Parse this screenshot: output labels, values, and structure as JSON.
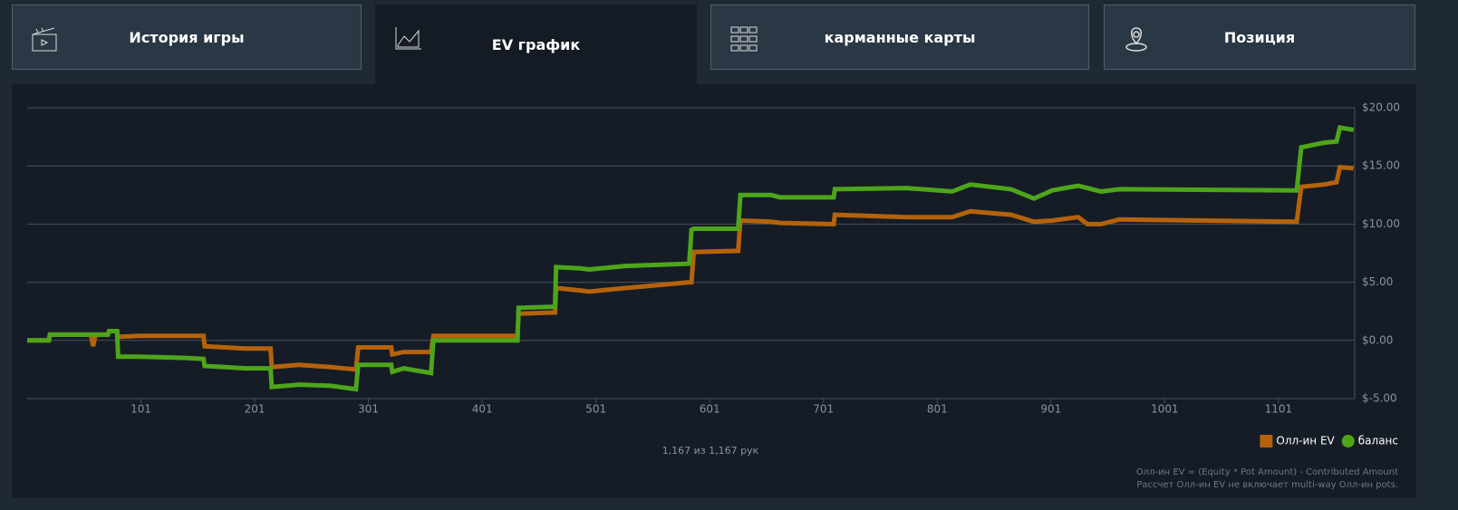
{
  "tabs": [
    {
      "label": "История игры"
    },
    {
      "label": "EV график"
    },
    {
      "label": "карманные карты"
    },
    {
      "label": "Позиция"
    }
  ],
  "active_tab": 1,
  "chart_data": {
    "type": "line",
    "x": [
      1,
      20,
      21,
      57,
      59,
      61,
      72,
      73,
      80,
      81,
      100,
      140,
      156,
      157,
      193,
      215,
      216,
      240,
      268,
      290,
      292,
      321,
      322,
      332,
      356,
      358,
      432,
      433,
      465,
      466,
      487,
      495,
      527,
      583,
      585,
      587,
      626,
      628,
      655,
      663,
      710,
      711,
      774,
      814,
      830,
      866,
      886,
      902,
      925,
      933,
      945,
      961,
      1117,
      1121,
      1141,
      1152,
      1155,
      1167
    ],
    "series": [
      {
        "name": "Олл-ин EV",
        "color": "#b5620c",
        "values": [
          0.0,
          0.0,
          0.5,
          0.5,
          -0.5,
          0.5,
          0.5,
          0.8,
          0.8,
          0.3,
          0.4,
          0.4,
          0.4,
          -0.5,
          -0.7,
          -0.7,
          -2.3,
          -2.1,
          -2.3,
          -2.5,
          -0.6,
          -0.6,
          -1.2,
          -1.0,
          -1.0,
          0.4,
          0.4,
          2.3,
          2.4,
          4.5,
          4.3,
          4.2,
          4.5,
          5.0,
          5.0,
          7.6,
          7.7,
          10.3,
          10.2,
          10.1,
          10.0,
          10.8,
          10.6,
          10.6,
          11.1,
          10.8,
          10.2,
          10.3,
          10.6,
          10.0,
          10.0,
          10.4,
          10.2,
          13.2,
          13.4,
          13.6,
          14.9,
          14.8
        ]
      },
      {
        "name": "баланс",
        "color": "#4ea51b",
        "values": [
          0.0,
          0.0,
          0.5,
          0.5,
          0.5,
          0.5,
          0.5,
          0.8,
          0.8,
          -1.4,
          -1.4,
          -1.5,
          -1.6,
          -2.2,
          -2.4,
          -2.4,
          -4.0,
          -3.8,
          -3.9,
          -4.2,
          -2.1,
          -2.1,
          -2.7,
          -2.4,
          -2.8,
          0.0,
          0.0,
          2.8,
          2.9,
          6.3,
          6.2,
          6.1,
          6.4,
          6.6,
          9.5,
          9.6,
          9.6,
          12.5,
          12.5,
          12.3,
          12.3,
          13.0,
          13.1,
          12.8,
          13.4,
          13.0,
          12.2,
          12.9,
          13.3,
          13.1,
          12.8,
          13.0,
          12.9,
          16.6,
          17.0,
          17.1,
          18.3,
          18.1
        ]
      }
    ],
    "xlim": [
      1,
      1168
    ],
    "xticks": [
      101,
      201,
      301,
      401,
      501,
      601,
      701,
      801,
      901,
      1001,
      1101
    ],
    "ylim": [
      -5,
      20
    ],
    "yticks": [
      {
        "value": -5,
        "label": "$-5.00"
      },
      {
        "value": 0,
        "label": "$0.00"
      },
      {
        "value": 5,
        "label": "$5.00"
      },
      {
        "value": 10,
        "label": "$10.00"
      },
      {
        "value": 15,
        "label": "$15.00"
      },
      {
        "value": 20,
        "label": "$20.00"
      }
    ],
    "grid": true,
    "legend": "bottom-right",
    "hands_note": "1,167 из 1,167 рук",
    "footnotes": [
      "Олл-ин EV = (Equity * Pot Amount) - Contributed Amount",
      "Рассчет Олл-ин EV не включает multi-way Олл-ин pots."
    ]
  }
}
